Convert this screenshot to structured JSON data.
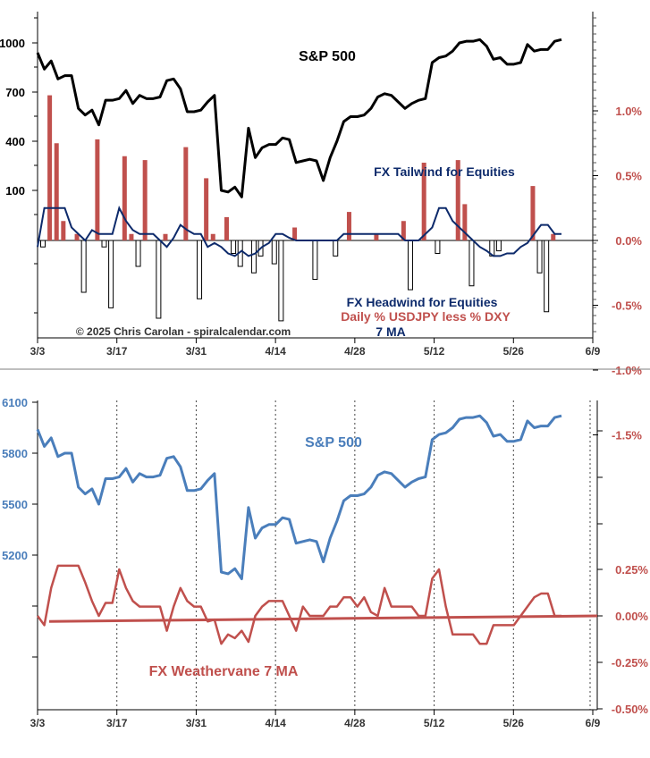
{
  "colors": {
    "spx_top": "#000000",
    "spx_bottom": "#4a7ebb",
    "tailwind_bar": "#c0504d",
    "headwind_bar_fill": "#ffffff",
    "headwind_bar_edge": "#000000",
    "ma_line_top": "#0d2a6b",
    "weathervane": "#c0504d",
    "trendline": "#c0504d",
    "right_axis_text": "#c0504d",
    "divider": "#7f7f7f"
  },
  "chart_data": [
    {
      "type": "line",
      "panel": "top",
      "x_tick_labels": [
        "3/3",
        "3/17",
        "3/31",
        "4/14",
        "4/28",
        "5/12",
        "5/26",
        "6/9"
      ],
      "left_axis_tick_labels": [
        "1000",
        "700",
        "400",
        "100"
      ],
      "right_axis_tick_labels": [
        "1.0%",
        "0.5%",
        "0.0%",
        "-0.5%",
        "-1.0%",
        "-1.5%"
      ],
      "right_ylim": [
        -1.5,
        1.5
      ],
      "annotations": {
        "spx_label": "S&P 500",
        "tailwind_label": "FX Tailwind for Equities",
        "headwind_label": "FX Headwind for Equities",
        "daily_label": "Daily % USDJPY less % DXY",
        "ma_label": "7 MA",
        "copyright": "© 2025 Chris Carolan - spiralcalendar.com"
      },
      "spx_series": {
        "ylim": [
          4900,
          6100
        ],
        "values": [
          5940,
          5840,
          5890,
          5780,
          5800,
          5800,
          5600,
          5560,
          5590,
          5500,
          5650,
          5650,
          5660,
          5710,
          5630,
          5680,
          5660,
          5660,
          5670,
          5770,
          5780,
          5720,
          5580,
          5580,
          5590,
          5640,
          5680,
          5100,
          5090,
          5120,
          5060,
          5480,
          5300,
          5360,
          5380,
          5380,
          5420,
          5410,
          5270,
          5280,
          5290,
          5280,
          5160,
          5300,
          5400,
          5520,
          5550,
          5550,
          5560,
          5600,
          5670,
          5690,
          5680,
          5640,
          5600,
          5630,
          5650,
          5660,
          5880,
          5910,
          5920,
          5950,
          6000,
          6010,
          6010,
          6020,
          5980,
          5900,
          5910,
          5870,
          5870,
          5880,
          5990,
          5950,
          5960,
          5960,
          6010,
          6020
        ]
      },
      "fx_daily_pct": [
        -0.05,
        1.12,
        0.75,
        0.15,
        0.0,
        0.05,
        -0.4,
        0.0,
        0.78,
        -0.05,
        -0.52,
        0.0,
        0.65,
        0.05,
        -0.2,
        0.62,
        0.0,
        -0.6,
        0.05,
        0.0,
        0.0,
        0.72,
        0.0,
        -0.45,
        0.48,
        0.05,
        0.0,
        0.18,
        -0.1,
        -0.2,
        0.0,
        -0.25,
        -0.12,
        0.0,
        -0.18,
        -0.62,
        0.0,
        0.1,
        0.0,
        0.0,
        -0.3,
        0.0,
        0.0,
        -0.12,
        0.0,
        0.22,
        0.0,
        0.0,
        0.0,
        0.05,
        0.0,
        0.0,
        0.0,
        0.15,
        -0.38,
        0.0,
        0.6,
        0.0,
        -0.1,
        0.0,
        0.0,
        0.62,
        0.28,
        -0.35,
        0.0,
        0.0,
        -0.12,
        -0.08,
        0.0,
        0.0,
        0.0,
        0.0,
        0.42,
        -0.25,
        -0.55,
        0.05,
        0.0,
        0.0
      ],
      "fx_ma7": [
        -0.05,
        0.25,
        0.25,
        0.25,
        0.25,
        0.1,
        0.05,
        0.0,
        0.08,
        0.05,
        0.05,
        0.05,
        0.25,
        0.15,
        0.08,
        0.05,
        0.05,
        0.05,
        0.0,
        -0.05,
        0.02,
        0.12,
        0.08,
        0.05,
        0.05,
        -0.05,
        -0.02,
        -0.05,
        -0.1,
        -0.12,
        -0.08,
        -0.12,
        -0.1,
        -0.05,
        -0.02,
        0.05,
        0.05,
        0.02,
        0.0,
        0.0,
        0.0,
        0.0,
        0.0,
        0.0,
        0.0,
        0.05,
        0.05,
        0.05,
        0.05,
        0.05,
        0.05,
        0.05,
        0.05,
        0.05,
        0.0,
        0.0,
        0.0,
        0.05,
        0.1,
        0.25,
        0.25,
        0.15,
        0.1,
        0.05,
        0.0,
        -0.05,
        -0.08,
        -0.12,
        -0.12,
        -0.1,
        -0.1,
        -0.05,
        -0.02,
        0.05,
        0.12,
        0.12,
        0.05,
        0.05
      ]
    },
    {
      "type": "line",
      "panel": "bottom",
      "x_tick_labels": [
        "3/3",
        "3/17",
        "3/31",
        "4/14",
        "4/28",
        "5/12",
        "5/26",
        "6/9"
      ],
      "left_axis_tick_labels": [
        "6100",
        "5800",
        "5500",
        "5200"
      ],
      "left_ylim": [
        4600,
        6100
      ],
      "right_axis_tick_labels": [
        "0.25%",
        "0.00%",
        "-0.25%",
        "-0.50%"
      ],
      "right_ylim": [
        -0.5,
        0.5
      ],
      "annotations": {
        "spx_label": "S&P 500",
        "weathervane_label": "FX Weathervane 7 MA"
      },
      "spx_series": {
        "values": [
          5940,
          5840,
          5890,
          5780,
          5800,
          5800,
          5600,
          5560,
          5590,
          5500,
          5650,
          5650,
          5660,
          5710,
          5630,
          5680,
          5660,
          5660,
          5670,
          5770,
          5780,
          5720,
          5580,
          5580,
          5590,
          5640,
          5680,
          5100,
          5090,
          5120,
          5060,
          5480,
          5300,
          5360,
          5380,
          5380,
          5420,
          5410,
          5270,
          5280,
          5290,
          5280,
          5160,
          5300,
          5400,
          5520,
          5550,
          5550,
          5560,
          5600,
          5670,
          5690,
          5680,
          5640,
          5600,
          5630,
          5650,
          5660,
          5880,
          5910,
          5920,
          5950,
          6000,
          6010,
          6010,
          6020,
          5980,
          5900,
          5910,
          5870,
          5870,
          5880,
          5990,
          5950,
          5960,
          5960,
          6010,
          6020
        ]
      },
      "weathervane_ma7": [
        0.0,
        -0.05,
        0.15,
        0.27,
        0.27,
        0.27,
        0.27,
        0.18,
        0.08,
        0.0,
        0.07,
        0.07,
        0.25,
        0.15,
        0.08,
        0.05,
        0.05,
        0.05,
        0.05,
        -0.08,
        0.05,
        0.15,
        0.08,
        0.05,
        0.05,
        -0.03,
        -0.02,
        -0.15,
        -0.1,
        -0.12,
        -0.08,
        -0.14,
        0.0,
        0.05,
        0.08,
        0.08,
        0.08,
        0.0,
        -0.08,
        0.05,
        0.0,
        0.0,
        0.0,
        0.05,
        0.05,
        0.1,
        0.1,
        0.05,
        0.1,
        0.02,
        0.0,
        0.15,
        0.05,
        0.05,
        0.05,
        0.05,
        0.0,
        0.0,
        0.2,
        0.25,
        0.05,
        -0.1,
        -0.1,
        -0.1,
        -0.1,
        -0.15,
        -0.15,
        -0.05,
        -0.05,
        -0.05,
        -0.05,
        0.0,
        0.05,
        0.1,
        0.12,
        0.12,
        0.0,
        0.0
      ],
      "trend_line": [
        -0.03,
        0.0
      ],
      "vertical_gridlines": [
        "3/17",
        "3/31",
        "4/14",
        "4/28",
        "5/12",
        "5/26"
      ]
    }
  ]
}
